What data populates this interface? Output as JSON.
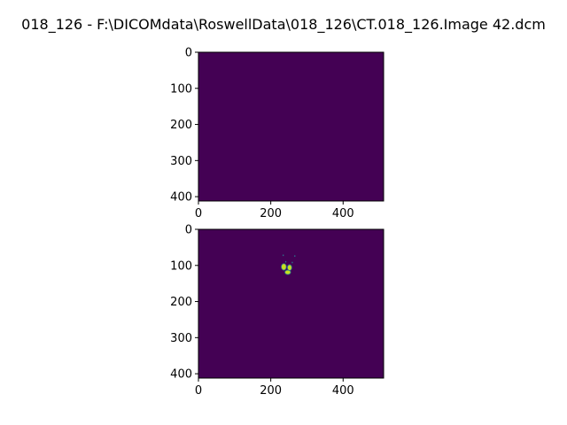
{
  "figure": {
    "title": "018_126 - F:\\DICOMdata\\RoswellData\\018_126\\CT.018_126.Image 42.dcm"
  },
  "colors": {
    "background_value": "#440154",
    "mask_fill": "#c8e020",
    "mask_edge": "#2a788e",
    "axes_edge": "#000000"
  },
  "chart_data": [
    {
      "type": "heatmap",
      "name": "top-image",
      "image_shape": [
        412,
        512
      ],
      "xlim": [
        0,
        512
      ],
      "ylim": [
        412,
        0
      ],
      "xticks": [
        0,
        200,
        400
      ],
      "yticks": [
        0,
        100,
        200,
        300,
        400
      ],
      "xtick_labels": [
        "0",
        "200",
        "400"
      ],
      "ytick_labels": [
        "0",
        "100",
        "200",
        "300",
        "400"
      ],
      "content": "uniform background value",
      "regions": []
    },
    {
      "type": "heatmap",
      "name": "bottom-image",
      "image_shape": [
        412,
        512
      ],
      "xlim": [
        0,
        512
      ],
      "ylim": [
        412,
        0
      ],
      "xticks": [
        0,
        200,
        400
      ],
      "yticks": [
        0,
        100,
        200,
        300,
        400
      ],
      "xtick_labels": [
        "0",
        "200",
        "400"
      ],
      "ytick_labels": [
        "0",
        "100",
        "200",
        "300",
        "400"
      ],
      "content": "segmentation mask with small bright region",
      "regions": [
        {
          "cx": 236,
          "cy": 104,
          "rx": 7,
          "ry": 9
        },
        {
          "cx": 252,
          "cy": 106,
          "rx": 6,
          "ry": 8
        },
        {
          "cx": 247,
          "cy": 119,
          "rx": 8,
          "ry": 6
        }
      ],
      "specks": [
        {
          "x": 233,
          "y": 70
        },
        {
          "x": 265,
          "y": 72
        },
        {
          "x": 240,
          "y": 88
        },
        {
          "x": 258,
          "y": 90
        }
      ]
    }
  ]
}
